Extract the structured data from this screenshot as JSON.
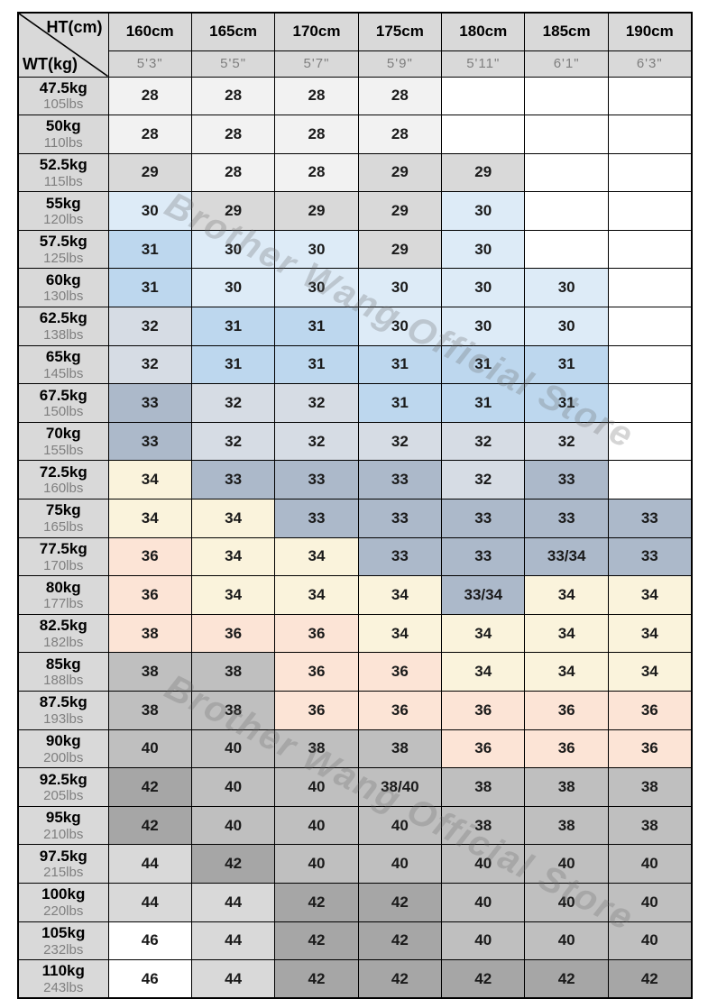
{
  "chart_data": {
    "type": "table",
    "title": "Height / Weight size chart",
    "corner": {
      "top": "HT(cm)",
      "bottom": "WT(kg)"
    },
    "columns": [
      {
        "cm": "160cm",
        "ft": "5'3\""
      },
      {
        "cm": "165cm",
        "ft": "5'5\""
      },
      {
        "cm": "170cm",
        "ft": "5'7\""
      },
      {
        "cm": "175cm",
        "ft": "5'9\""
      },
      {
        "cm": "180cm",
        "ft": "5'11\""
      },
      {
        "cm": "185cm",
        "ft": "6'1\""
      },
      {
        "cm": "190cm",
        "ft": "6'3\""
      }
    ],
    "rows": [
      {
        "kg": "47.5kg",
        "lbs": "105lbs",
        "cells": [
          {
            "v": "28",
            "c": "f2"
          },
          {
            "v": "28",
            "c": "f2"
          },
          {
            "v": "28",
            "c": "f2"
          },
          {
            "v": "28",
            "c": "f2"
          },
          {
            "v": "",
            "c": "w"
          },
          {
            "v": "",
            "c": "w"
          },
          {
            "v": "",
            "c": "w"
          }
        ]
      },
      {
        "kg": "50kg",
        "lbs": "110lbs",
        "cells": [
          {
            "v": "28",
            "c": "f2"
          },
          {
            "v": "28",
            "c": "f2"
          },
          {
            "v": "28",
            "c": "f2"
          },
          {
            "v": "28",
            "c": "f2"
          },
          {
            "v": "",
            "c": "w"
          },
          {
            "v": "",
            "c": "w"
          },
          {
            "v": "",
            "c": "w"
          }
        ]
      },
      {
        "kg": "52.5kg",
        "lbs": "115lbs",
        "cells": [
          {
            "v": "29",
            "c": "d9"
          },
          {
            "v": "28",
            "c": "f2"
          },
          {
            "v": "28",
            "c": "f2"
          },
          {
            "v": "29",
            "c": "d9"
          },
          {
            "v": "29",
            "c": "d9"
          },
          {
            "v": "",
            "c": "w"
          },
          {
            "v": "",
            "c": "w"
          }
        ]
      },
      {
        "kg": "55kg",
        "lbs": "120lbs",
        "cells": [
          {
            "v": "30",
            "c": "lb"
          },
          {
            "v": "29",
            "c": "d9"
          },
          {
            "v": "29",
            "c": "d9"
          },
          {
            "v": "29",
            "c": "d9"
          },
          {
            "v": "30",
            "c": "lb"
          },
          {
            "v": "",
            "c": "w"
          },
          {
            "v": "",
            "c": "w"
          }
        ]
      },
      {
        "kg": "57.5kg",
        "lbs": "125lbs",
        "cells": [
          {
            "v": "31",
            "c": "mb"
          },
          {
            "v": "30",
            "c": "lb"
          },
          {
            "v": "30",
            "c": "lb"
          },
          {
            "v": "29",
            "c": "d9"
          },
          {
            "v": "30",
            "c": "lb"
          },
          {
            "v": "",
            "c": "w"
          },
          {
            "v": "",
            "c": "w"
          }
        ]
      },
      {
        "kg": "60kg",
        "lbs": "130lbs",
        "cells": [
          {
            "v": "31",
            "c": "mb"
          },
          {
            "v": "30",
            "c": "lb"
          },
          {
            "v": "30",
            "c": "lb"
          },
          {
            "v": "30",
            "c": "lb"
          },
          {
            "v": "30",
            "c": "lb"
          },
          {
            "v": "30",
            "c": "lb"
          },
          {
            "v": "",
            "c": "w"
          }
        ]
      },
      {
        "kg": "62.5kg",
        "lbs": "138lbs",
        "cells": [
          {
            "v": "32",
            "c": "g1"
          },
          {
            "v": "31",
            "c": "mb"
          },
          {
            "v": "31",
            "c": "mb"
          },
          {
            "v": "30",
            "c": "lb"
          },
          {
            "v": "30",
            "c": "lb"
          },
          {
            "v": "30",
            "c": "lb"
          },
          {
            "v": "",
            "c": "w"
          }
        ]
      },
      {
        "kg": "65kg",
        "lbs": "145lbs",
        "cells": [
          {
            "v": "32",
            "c": "g1"
          },
          {
            "v": "31",
            "c": "mb"
          },
          {
            "v": "31",
            "c": "mb"
          },
          {
            "v": "31",
            "c": "mb"
          },
          {
            "v": "31",
            "c": "mb"
          },
          {
            "v": "31",
            "c": "mb"
          },
          {
            "v": "",
            "c": "w"
          }
        ]
      },
      {
        "kg": "67.5kg",
        "lbs": "150lbs",
        "cells": [
          {
            "v": "33",
            "c": "g2"
          },
          {
            "v": "32",
            "c": "g1"
          },
          {
            "v": "32",
            "c": "g1"
          },
          {
            "v": "31",
            "c": "mb"
          },
          {
            "v": "31",
            "c": "mb"
          },
          {
            "v": "31",
            "c": "mb"
          },
          {
            "v": "",
            "c": "w"
          }
        ]
      },
      {
        "kg": "70kg",
        "lbs": "155lbs",
        "cells": [
          {
            "v": "33",
            "c": "g2"
          },
          {
            "v": "32",
            "c": "g1"
          },
          {
            "v": "32",
            "c": "g1"
          },
          {
            "v": "32",
            "c": "g1"
          },
          {
            "v": "32",
            "c": "g1"
          },
          {
            "v": "32",
            "c": "g1"
          },
          {
            "v": "",
            "c": "w"
          }
        ]
      },
      {
        "kg": "72.5kg",
        "lbs": "160lbs",
        "cells": [
          {
            "v": "34",
            "c": "cr"
          },
          {
            "v": "33",
            "c": "g2"
          },
          {
            "v": "33",
            "c": "g2"
          },
          {
            "v": "33",
            "c": "g2"
          },
          {
            "v": "32",
            "c": "g1"
          },
          {
            "v": "33",
            "c": "g2"
          },
          {
            "v": "",
            "c": "w"
          }
        ]
      },
      {
        "kg": "75kg",
        "lbs": "165lbs",
        "cells": [
          {
            "v": "34",
            "c": "cr"
          },
          {
            "v": "34",
            "c": "cr"
          },
          {
            "v": "33",
            "c": "g2"
          },
          {
            "v": "33",
            "c": "g2"
          },
          {
            "v": "33",
            "c": "g2"
          },
          {
            "v": "33",
            "c": "g2"
          },
          {
            "v": "33",
            "c": "g2"
          }
        ]
      },
      {
        "kg": "77.5kg",
        "lbs": "170lbs",
        "cells": [
          {
            "v": "36",
            "c": "pc"
          },
          {
            "v": "34",
            "c": "cr"
          },
          {
            "v": "34",
            "c": "cr"
          },
          {
            "v": "33",
            "c": "g2"
          },
          {
            "v": "33",
            "c": "g2"
          },
          {
            "v": "33/34",
            "c": "g2"
          },
          {
            "v": "33",
            "c": "g2"
          }
        ]
      },
      {
        "kg": "80kg",
        "lbs": "177lbs",
        "cells": [
          {
            "v": "36",
            "c": "pc"
          },
          {
            "v": "34",
            "c": "cr"
          },
          {
            "v": "34",
            "c": "cr"
          },
          {
            "v": "34",
            "c": "cr"
          },
          {
            "v": "33/34",
            "c": "g2"
          },
          {
            "v": "34",
            "c": "cr"
          },
          {
            "v": "34",
            "c": "cr"
          }
        ]
      },
      {
        "kg": "82.5kg",
        "lbs": "182lbs",
        "cells": [
          {
            "v": "38",
            "c": "pc"
          },
          {
            "v": "36",
            "c": "pc"
          },
          {
            "v": "36",
            "c": "pc"
          },
          {
            "v": "34",
            "c": "cr"
          },
          {
            "v": "34",
            "c": "cr"
          },
          {
            "v": "34",
            "c": "cr"
          },
          {
            "v": "34",
            "c": "cr"
          }
        ]
      },
      {
        "kg": "85kg",
        "lbs": "188lbs",
        "cells": [
          {
            "v": "38",
            "c": "bf"
          },
          {
            "v": "38",
            "c": "bf"
          },
          {
            "v": "36",
            "c": "pc"
          },
          {
            "v": "36",
            "c": "pc"
          },
          {
            "v": "34",
            "c": "cr"
          },
          {
            "v": "34",
            "c": "cr"
          },
          {
            "v": "34",
            "c": "cr"
          }
        ]
      },
      {
        "kg": "87.5kg",
        "lbs": "193lbs",
        "cells": [
          {
            "v": "38",
            "c": "bf"
          },
          {
            "v": "38",
            "c": "bf"
          },
          {
            "v": "36",
            "c": "pc"
          },
          {
            "v": "36",
            "c": "pc"
          },
          {
            "v": "36",
            "c": "pc"
          },
          {
            "v": "36",
            "c": "pc"
          },
          {
            "v": "36",
            "c": "pc"
          }
        ]
      },
      {
        "kg": "90kg",
        "lbs": "200lbs",
        "cells": [
          {
            "v": "40",
            "c": "bf"
          },
          {
            "v": "40",
            "c": "bf"
          },
          {
            "v": "38",
            "c": "bf"
          },
          {
            "v": "38",
            "c": "bf"
          },
          {
            "v": "36",
            "c": "pc"
          },
          {
            "v": "36",
            "c": "pc"
          },
          {
            "v": "36",
            "c": "pc"
          }
        ]
      },
      {
        "kg": "92.5kg",
        "lbs": "205lbs",
        "cells": [
          {
            "v": "42",
            "c": "a6"
          },
          {
            "v": "40",
            "c": "bf"
          },
          {
            "v": "40",
            "c": "bf"
          },
          {
            "v": "38/40",
            "c": "bf"
          },
          {
            "v": "38",
            "c": "bf"
          },
          {
            "v": "38",
            "c": "bf"
          },
          {
            "v": "38",
            "c": "bf"
          }
        ]
      },
      {
        "kg": "95kg",
        "lbs": "210lbs",
        "cells": [
          {
            "v": "42",
            "c": "a6"
          },
          {
            "v": "40",
            "c": "bf"
          },
          {
            "v": "40",
            "c": "bf"
          },
          {
            "v": "40",
            "c": "bf"
          },
          {
            "v": "38",
            "c": "bf"
          },
          {
            "v": "38",
            "c": "bf"
          },
          {
            "v": "38",
            "c": "bf"
          }
        ]
      },
      {
        "kg": "97.5kg",
        "lbs": "215lbs",
        "cells": [
          {
            "v": "44",
            "c": "d9"
          },
          {
            "v": "42",
            "c": "a6"
          },
          {
            "v": "40",
            "c": "bf"
          },
          {
            "v": "40",
            "c": "bf"
          },
          {
            "v": "40",
            "c": "bf"
          },
          {
            "v": "40",
            "c": "bf"
          },
          {
            "v": "40",
            "c": "bf"
          }
        ]
      },
      {
        "kg": "100kg",
        "lbs": "220lbs",
        "cells": [
          {
            "v": "44",
            "c": "d9"
          },
          {
            "v": "44",
            "c": "d9"
          },
          {
            "v": "42",
            "c": "a6"
          },
          {
            "v": "42",
            "c": "a6"
          },
          {
            "v": "40",
            "c": "bf"
          },
          {
            "v": "40",
            "c": "bf"
          },
          {
            "v": "40",
            "c": "bf"
          }
        ]
      },
      {
        "kg": "105kg",
        "lbs": "232lbs",
        "cells": [
          {
            "v": "46",
            "c": "w"
          },
          {
            "v": "44",
            "c": "d9"
          },
          {
            "v": "42",
            "c": "a6"
          },
          {
            "v": "42",
            "c": "a6"
          },
          {
            "v": "40",
            "c": "bf"
          },
          {
            "v": "40",
            "c": "bf"
          },
          {
            "v": "40",
            "c": "bf"
          }
        ]
      },
      {
        "kg": "110kg",
        "lbs": "243lbs",
        "cells": [
          {
            "v": "46",
            "c": "w"
          },
          {
            "v": "44",
            "c": "d9"
          },
          {
            "v": "42",
            "c": "a6"
          },
          {
            "v": "42",
            "c": "a6"
          },
          {
            "v": "42",
            "c": "a6"
          },
          {
            "v": "42",
            "c": "a6"
          },
          {
            "v": "42",
            "c": "a6"
          }
        ]
      }
    ]
  },
  "palette": {
    "w": "#FFFFFF",
    "f2": "#F2F2F2",
    "d9": "#D9D9D9",
    "bf": "#BFBFBF",
    "a6": "#A6A6A6",
    "lb": "#DDEBF7",
    "mb": "#BDD7EE",
    "g1": "#D6DCE4",
    "g2": "#ACB9CA",
    "cr": "#FAF3DC",
    "pc": "#FCE4D6"
  },
  "watermark": {
    "text": "Brother Wang Official Store",
    "color": "rgba(105,105,105,0.28)"
  }
}
